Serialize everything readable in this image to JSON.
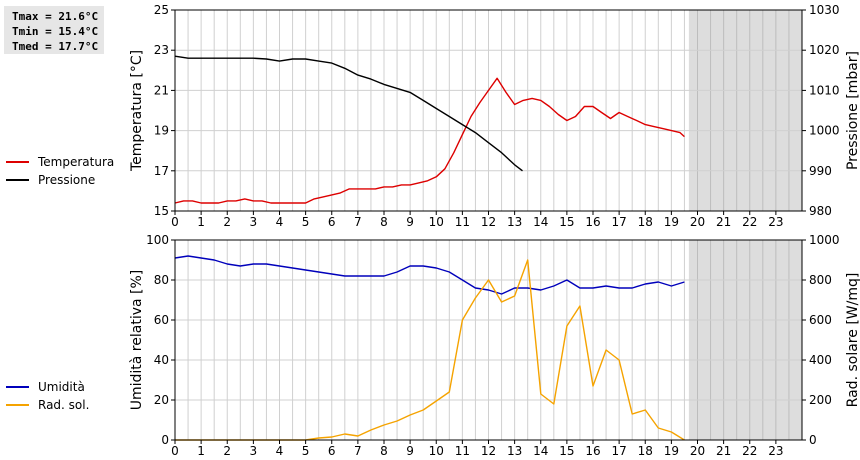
{
  "stats": {
    "tmax": "Tmax = 21.6°C",
    "tmin": "Tmin = 15.4°C",
    "tmed": "Tmed = 17.7°C"
  },
  "colors": {
    "temperature": "#dd0000",
    "pressure": "#000000",
    "humidity": "#0000bb",
    "solar": "#f5a300",
    "future_shade": "#dddddd",
    "grid": "#d0d0d0"
  },
  "chart_data": [
    {
      "type": "line",
      "xlim": [
        0,
        24
      ],
      "x_ticks": [
        0,
        1,
        2,
        3,
        4,
        5,
        6,
        7,
        8,
        9,
        10,
        11,
        12,
        13,
        14,
        15,
        16,
        17,
        18,
        19,
        20,
        21,
        22,
        23
      ],
      "shaded_from": 19.67,
      "left_axis": {
        "label": "Temperatura [°C]",
        "ylim": [
          15,
          25
        ],
        "ticks": [
          15,
          17,
          19,
          21,
          23,
          25
        ]
      },
      "right_axis": {
        "label": "Pressione [mbar]",
        "ylim": [
          980,
          1030
        ],
        "ticks": [
          980,
          990,
          1000,
          1010,
          1020,
          1030
        ]
      },
      "series": [
        {
          "name": "Temperatura",
          "axis": "left",
          "x": [
            0,
            0.33,
            0.67,
            1,
            1.33,
            1.67,
            2,
            2.33,
            2.67,
            3,
            3.33,
            3.67,
            4,
            4.33,
            4.67,
            5,
            5.33,
            5.67,
            6,
            6.33,
            6.67,
            7,
            7.33,
            7.67,
            8,
            8.33,
            8.67,
            9,
            9.33,
            9.67,
            10,
            10.33,
            10.67,
            11,
            11.33,
            11.67,
            12,
            12.33,
            12.67,
            13,
            13.33,
            13.67,
            14,
            14.33,
            14.67,
            15,
            15.33,
            15.67,
            16,
            16.33,
            16.67,
            17,
            17.33,
            17.67,
            18,
            18.33,
            18.67,
            19,
            19.33,
            19.5
          ],
          "values": [
            15.4,
            15.5,
            15.5,
            15.4,
            15.4,
            15.4,
            15.5,
            15.5,
            15.6,
            15.5,
            15.5,
            15.4,
            15.4,
            15.4,
            15.4,
            15.4,
            15.6,
            15.7,
            15.8,
            15.9,
            16.1,
            16.1,
            16.1,
            16.1,
            16.2,
            16.2,
            16.3,
            16.3,
            16.4,
            16.5,
            16.7,
            17.1,
            17.9,
            18.8,
            19.7,
            20.4,
            21.0,
            21.6,
            20.9,
            20.3,
            20.5,
            20.6,
            20.5,
            20.2,
            19.8,
            19.5,
            19.7,
            20.2,
            20.2,
            19.9,
            19.6,
            19.9,
            19.7,
            19.5,
            19.3,
            19.2,
            19.1,
            19.0,
            18.9,
            18.7
          ]
        },
        {
          "name": "Pressione",
          "axis": "right",
          "x": [
            0,
            0.5,
            1,
            1.5,
            2,
            2.5,
            3,
            3.5,
            4,
            4.5,
            5,
            5.5,
            6,
            6.5,
            7,
            7.5,
            8,
            8.5,
            9,
            9.5,
            10,
            10.5,
            11,
            11.5,
            12,
            12.5,
            13,
            13.3
          ],
          "values": [
            1018.5,
            1018.0,
            1018.0,
            1018.0,
            1018.0,
            1018.0,
            1018.0,
            1017.8,
            1017.3,
            1017.8,
            1017.8,
            1017.3,
            1016.8,
            1015.5,
            1013.8,
            1012.8,
            1011.5,
            1010.5,
            1009.5,
            1007.5,
            1005.5,
            1003.5,
            1001.5,
            999.5,
            997.0,
            994.5,
            991.5,
            990.0
          ]
        }
      ]
    },
    {
      "type": "line",
      "xlim": [
        0,
        24
      ],
      "x_ticks": [
        0,
        1,
        2,
        3,
        4,
        5,
        6,
        7,
        8,
        9,
        10,
        11,
        12,
        13,
        14,
        15,
        16,
        17,
        18,
        19,
        20,
        21,
        22,
        23
      ],
      "shaded_from": 19.67,
      "left_axis": {
        "label": "Umidità relativa [%]",
        "ylim": [
          0,
          100
        ],
        "ticks": [
          0,
          20,
          40,
          60,
          80,
          100
        ]
      },
      "right_axis": {
        "label": "Rad. solare [W/mq]",
        "ylim": [
          0,
          1000
        ],
        "ticks": [
          0,
          200,
          400,
          600,
          800,
          1000
        ]
      },
      "series": [
        {
          "name": "Umidità",
          "axis": "left",
          "x": [
            0,
            0.5,
            1,
            1.5,
            2,
            2.5,
            3,
            3.5,
            4,
            4.5,
            5,
            5.5,
            6,
            6.5,
            7,
            7.5,
            8,
            8.5,
            9,
            9.5,
            10,
            10.5,
            11,
            11.5,
            12,
            12.5,
            13,
            13.5,
            14,
            14.5,
            15,
            15.5,
            16,
            16.5,
            17,
            17.5,
            18,
            18.5,
            19,
            19.5
          ],
          "values": [
            91,
            92,
            91,
            90,
            88,
            87,
            88,
            88,
            87,
            86,
            85,
            84,
            83,
            82,
            82,
            82,
            82,
            84,
            87,
            87,
            86,
            84,
            80,
            76,
            75,
            73,
            76,
            76,
            75,
            77,
            80,
            76,
            76,
            77,
            76,
            76,
            78,
            79,
            77,
            79
          ]
        },
        {
          "name": "Rad. sol.",
          "axis": "right",
          "x": [
            0,
            1,
            2,
            3,
            4,
            5,
            5.5,
            6,
            6.5,
            7,
            7.5,
            8,
            8.5,
            9,
            9.5,
            10,
            10.5,
            11,
            11.5,
            12,
            12.5,
            13,
            13.5,
            14,
            14.5,
            15,
            15.5,
            16,
            16.5,
            17,
            17.5,
            18,
            18.5,
            19,
            19.5
          ],
          "values": [
            0,
            0,
            0,
            0,
            0,
            0,
            10,
            15,
            30,
            20,
            50,
            75,
            95,
            125,
            150,
            195,
            240,
            600,
            710,
            800,
            690,
            720,
            900,
            230,
            180,
            570,
            670,
            270,
            450,
            400,
            130,
            150,
            60,
            40,
            0
          ]
        }
      ]
    }
  ]
}
